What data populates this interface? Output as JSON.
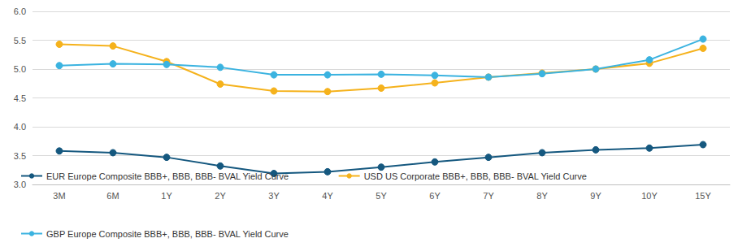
{
  "chart_data": {
    "type": "line",
    "categories": [
      "3M",
      "6M",
      "1Y",
      "2Y",
      "3Y",
      "4Y",
      "5Y",
      "6Y",
      "7Y",
      "8Y",
      "9Y",
      "10Y",
      "15Y"
    ],
    "series": [
      {
        "name": "EUR Europe Composite BBB+, BBB, BBB- BVAL Yield Curve",
        "color": "#15587f",
        "values": [
          3.58,
          3.55,
          3.47,
          3.32,
          3.19,
          3.22,
          3.3,
          3.39,
          3.47,
          3.55,
          3.6,
          3.63,
          3.69
        ]
      },
      {
        "name": "USD US Corporate BBB+, BBB, BBB- BVAL Yield Curve",
        "color": "#f5b21c",
        "values": [
          5.43,
          5.4,
          5.13,
          4.74,
          4.62,
          4.61,
          4.67,
          4.76,
          4.86,
          4.93,
          5.0,
          5.1,
          5.36
        ]
      },
      {
        "name": "GBP Europe Composite BBB+, BBB, BBB- BVAL Yield Curve",
        "color": "#3bb3e0",
        "values": [
          5.06,
          5.09,
          5.08,
          5.03,
          4.9,
          4.9,
          4.91,
          4.89,
          4.86,
          4.92,
          5.0,
          5.16,
          5.52
        ]
      }
    ],
    "ylim": [
      3,
      6
    ],
    "yticks": [
      {
        "value": 3,
        "label": "3.0"
      },
      {
        "value": 3.5,
        "label": "3.5"
      },
      {
        "value": 4,
        "label": "4.0"
      },
      {
        "value": 4.5,
        "label": "4.5"
      },
      {
        "value": 5,
        "label": "5.0"
      },
      {
        "value": 5.5,
        "label": "5.5"
      },
      {
        "value": 6,
        "label": "6.0"
      }
    ],
    "grid": true,
    "legend": "bottom",
    "marker": "circle"
  }
}
